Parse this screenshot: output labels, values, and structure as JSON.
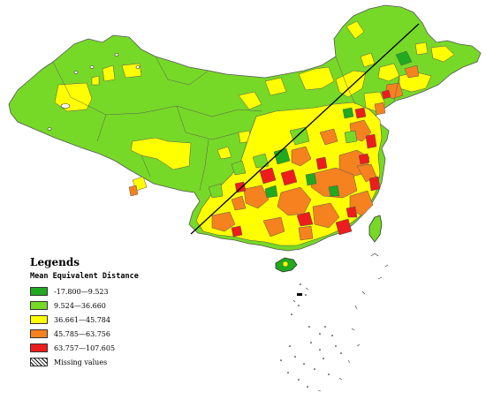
{
  "legend": {
    "title": "Legends",
    "subtitle": "Mean Equivalent Distance",
    "items": [
      {
        "label": "-17.800—9.523",
        "color": "#1faa1f"
      },
      {
        "label": "9.524—36.660",
        "color": "#77d927"
      },
      {
        "label": "36.661—45.784",
        "color": "#ffff00"
      },
      {
        "label": "45.785—63.756",
        "color": "#f5821f"
      },
      {
        "label": "63.757—107.605",
        "color": "#ee1c1c"
      },
      {
        "label": "Missing values",
        "color": "hatched"
      }
    ]
  },
  "colors": {
    "very_low": "#1faa1f",
    "low": "#77d927",
    "medium": "#ffff00",
    "high": "#f5821f",
    "very_high": "#ee1c1c",
    "border": "#555555"
  }
}
